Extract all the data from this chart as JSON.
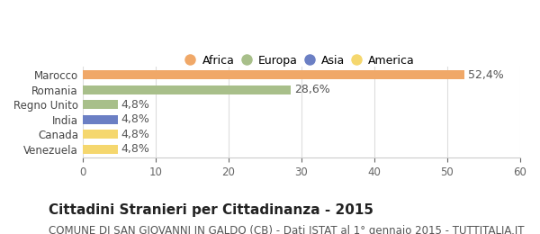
{
  "categories": [
    "Venezuela",
    "Canada",
    "India",
    "Regno Unito",
    "Romania",
    "Marocco"
  ],
  "values": [
    4.8,
    4.8,
    4.8,
    4.8,
    28.6,
    52.4
  ],
  "bar_colors": [
    "#f5d76e",
    "#f5d76e",
    "#6b7fc4",
    "#a8bf8a",
    "#a8bf8a",
    "#f0a868"
  ],
  "value_labels": [
    "4,8%",
    "4,8%",
    "4,8%",
    "4,8%",
    "28,6%",
    "52,4%"
  ],
  "legend_labels": [
    "Africa",
    "Europa",
    "Asia",
    "America"
  ],
  "legend_colors": [
    "#f0a868",
    "#a8bf8a",
    "#6b7fc4",
    "#f5d76e"
  ],
  "title": "Cittadini Stranieri per Cittadinanza - 2015",
  "subtitle": "COMUNE DI SAN GIOVANNI IN GALDO (CB) - Dati ISTAT al 1° gennaio 2015 - TUTTITALIA.IT",
  "xlim": [
    0,
    60
  ],
  "xticks": [
    0,
    10,
    20,
    30,
    40,
    50,
    60
  ],
  "background_color": "#ffffff",
  "grid_color": "#dddddd",
  "title_fontsize": 11,
  "subtitle_fontsize": 8.5,
  "label_fontsize": 9,
  "tick_fontsize": 8.5,
  "legend_fontsize": 9
}
